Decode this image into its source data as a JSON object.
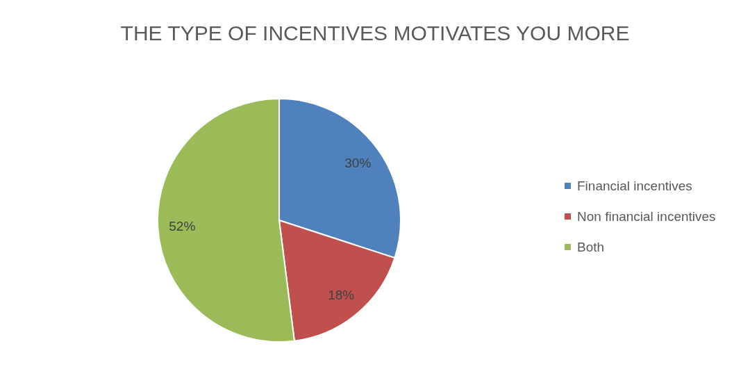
{
  "chart_data": {
    "type": "pie",
    "title": "THE TYPE OF INCENTIVES MOTIVATES YOU MORE",
    "categories": [
      "Financial incentives",
      "Non financial incentives",
      "Both"
    ],
    "values": [
      30,
      18,
      52
    ],
    "colors": [
      "#4f81bd",
      "#c0504d",
      "#9bbb59"
    ],
    "value_labels": [
      "30%",
      "18%",
      "52%"
    ],
    "legend": "right"
  }
}
